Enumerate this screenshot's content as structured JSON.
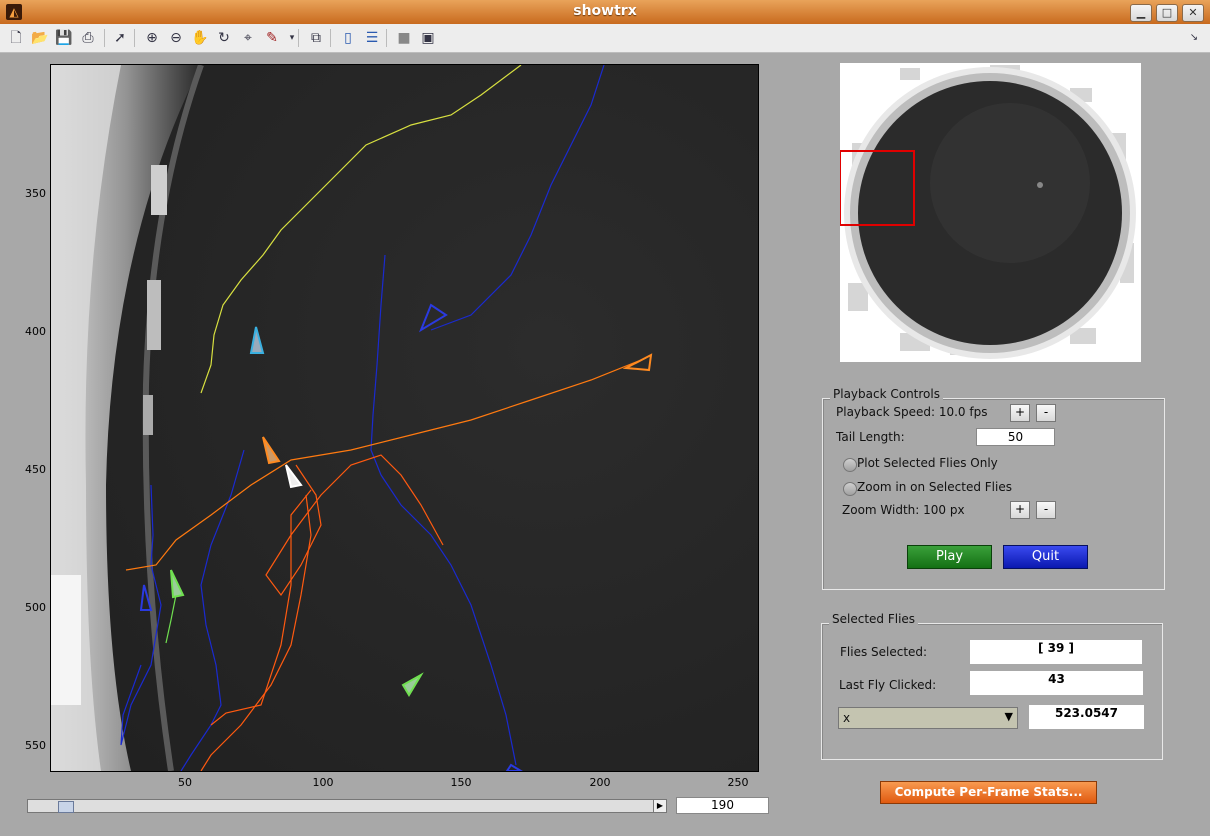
{
  "window": {
    "title": "showtrx",
    "minimize": "▁",
    "maximize": "□",
    "close": "✕"
  },
  "toolbar": {
    "icons": [
      "new-file-icon",
      "open-folder-icon",
      "save-icon",
      "print-icon",
      "pointer-icon",
      "zoom-in-icon",
      "zoom-out-icon",
      "pan-hand-icon",
      "rotate-3d-icon",
      "data-cursor-icon",
      "brush-icon",
      "link-plot-icon",
      "colorbar-icon",
      "legend-icon",
      "hide-plot-tools-icon",
      "show-plot-tools-icon"
    ],
    "dock_glyph": "↘"
  },
  "axes": {
    "y_ticks": [
      "350",
      "400",
      "450",
      "500",
      "550"
    ],
    "x_ticks": [
      "50",
      "100",
      "150",
      "200",
      "250"
    ],
    "xlim": [
      5,
      257
    ],
    "ylim": [
      303,
      558
    ]
  },
  "scrollbar": {
    "frame_value": "190",
    "position": 0.04
  },
  "playback": {
    "title": "Playback Controls",
    "speed_label": "Playback Speed: 10.0 fps",
    "plus": "+",
    "minus": "-",
    "tail_label": "Tail Length:",
    "tail_value": "50",
    "plot_selected_label": "Plot Selected Flies Only",
    "zoom_selected_label": "Zoom in on Selected Flies",
    "zoom_width_label": "Zoom Width: 100 px",
    "play_label": "Play",
    "quit_label": "Quit",
    "play_color": "#1f8a1f",
    "quit_color": "#1a2ee0"
  },
  "selected": {
    "title": "Selected Flies",
    "flies_selected_label": "Flies Selected:",
    "flies_selected_value": "[ 39 ]",
    "last_clicked_label": "Last Fly Clicked:",
    "last_clicked_value": "43",
    "stat_option": "x",
    "stat_value": "523.0547"
  },
  "compute_label": "Compute Per-Frame Stats...",
  "compute_color": "#f07020"
}
